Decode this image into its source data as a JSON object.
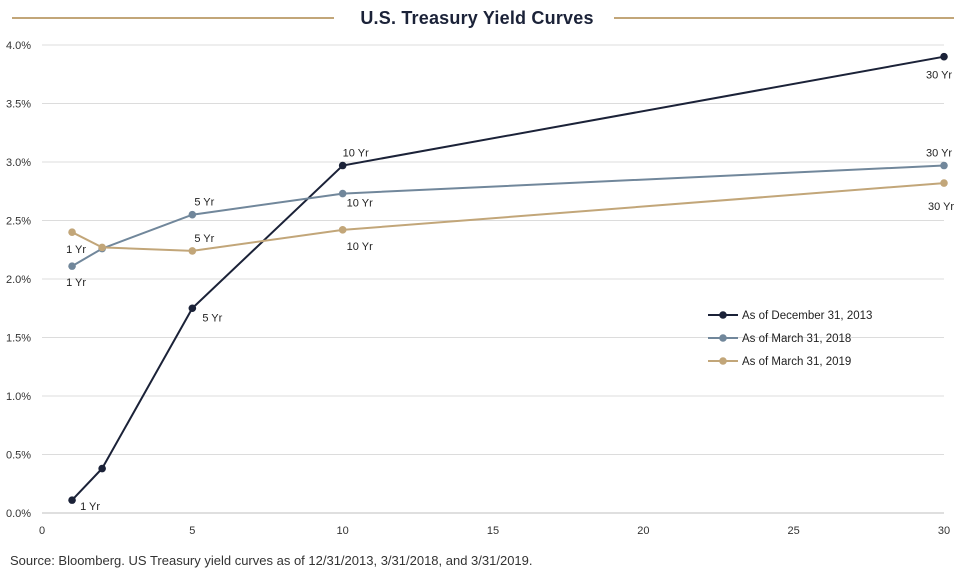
{
  "source_note": "Source: Bloomberg. US Treasury yield curves as of 12/31/2013, 3/31/2018, and 3/31/2019.",
  "chart_data": {
    "type": "line",
    "title": "U.S. Treasury Yield Curves",
    "xlabel": "",
    "ylabel": "",
    "xlim": [
      0,
      30
    ],
    "ylim": [
      0,
      4.0
    ],
    "x_ticks": [
      0,
      5,
      10,
      15,
      20,
      25,
      30
    ],
    "y_ticks": [
      "0.0%",
      "0.5%",
      "1.0%",
      "1.5%",
      "2.0%",
      "2.5%",
      "3.0%",
      "3.5%",
      "4.0%"
    ],
    "grid": "horizontal",
    "legend_position": "right-middle",
    "series": [
      {
        "name": "As of December 31, 2013",
        "color": "#1b2238",
        "x": [
          1,
          2,
          5,
          10,
          30
        ],
        "y": [
          0.11,
          0.38,
          1.75,
          2.97,
          3.9
        ],
        "labels": [
          "1 Yr",
          "",
          "5 Yr",
          "10 Yr",
          "30 Yr"
        ]
      },
      {
        "name": "As of March 31, 2018",
        "color": "#71879b",
        "x": [
          1,
          2,
          5,
          10,
          30
        ],
        "y": [
          2.11,
          2.26,
          2.55,
          2.73,
          2.97
        ],
        "labels": [
          "1 Yr",
          "",
          "5 Yr",
          "10 Yr",
          "30 Yr"
        ]
      },
      {
        "name": "As of March 31, 2019",
        "color": "#c2a679",
        "x": [
          1,
          2,
          5,
          10,
          30
        ],
        "y": [
          2.4,
          2.27,
          2.24,
          2.42,
          2.82
        ],
        "labels": [
          "1 Yr",
          "",
          "5 Yr",
          "10 Yr",
          "30 Yr"
        ]
      }
    ]
  }
}
